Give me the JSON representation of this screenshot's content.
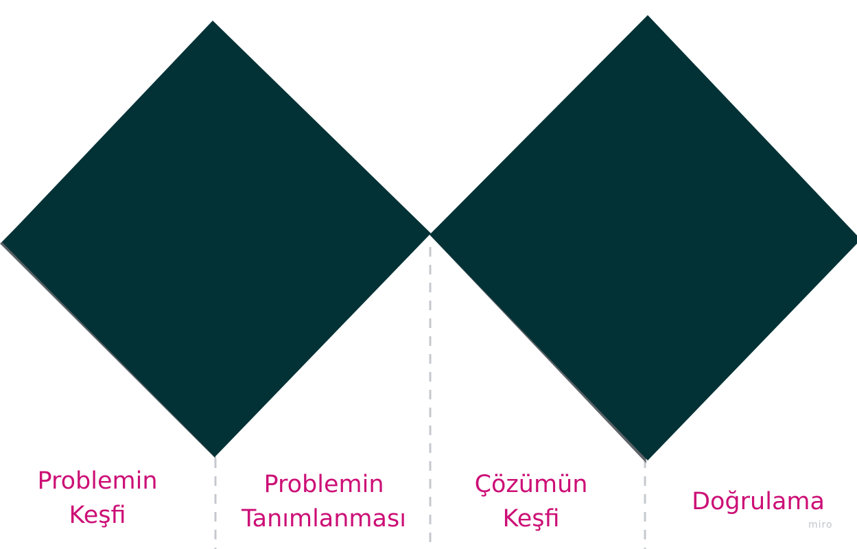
{
  "colors": {
    "diamond_fill": "#033236",
    "diamond_shadow": "#5b6166",
    "divider": "#c5c9ce",
    "label_text": "#cc0f76",
    "watermark_text": "#c0c5cb"
  },
  "phases": [
    {
      "label": "Problemin\nKeşfi"
    },
    {
      "label": "Problemin\nTanımlanması"
    },
    {
      "label": "Çözümün\nKeşfi"
    },
    {
      "label": "Doğrulama"
    }
  ],
  "watermark": "miro"
}
